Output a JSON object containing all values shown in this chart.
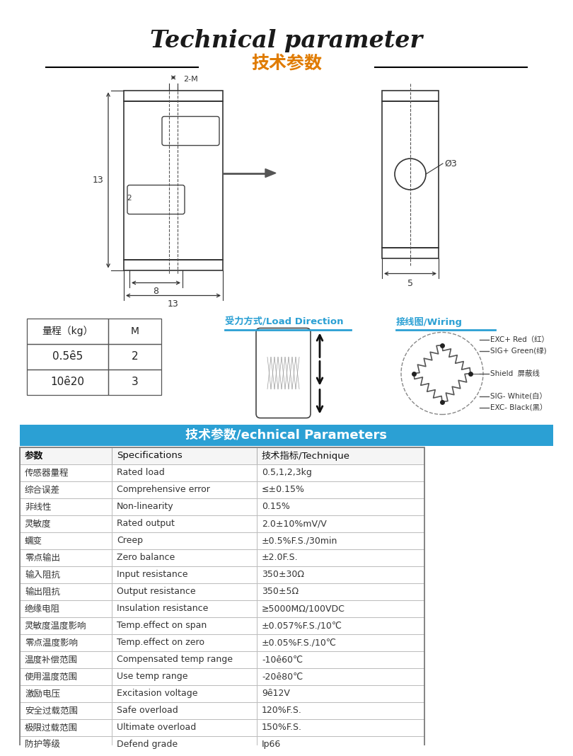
{
  "title_en": "Technical parameter",
  "title_cn": "技术参数",
  "title_en_color": "#1a1a1a",
  "title_cn_color": "#e07b00",
  "bg_color": "#ffffff",
  "section_header_bg": "#2ba0d4",
  "section_header_text": "技术参数/echnical Parameters",
  "section_header_color": "#ffffff",
  "range_table_headers": [
    "量程（kg）",
    "M"
  ],
  "range_table_rows": [
    [
      "0.5ȇ5",
      "2"
    ],
    [
      "10ȇ20",
      "3"
    ]
  ],
  "load_direction_label": "受力方式/Load Direction",
  "wiring_label": "接线图/Wiring",
  "wiring_lines": [
    "EXC+ Red（红）",
    "SIG+ Green(绿)",
    "Shield  屏蔽线",
    "SIG- White(白）",
    "EXC- Black(黑）"
  ],
  "tech_table_headers": [
    "参数",
    "Specifications",
    "技术指标/Technique"
  ],
  "tech_table_rows": [
    [
      "传感器量程",
      "Rated load",
      "0.5,1,2,3kg"
    ],
    [
      "综合误差",
      "Comprehensive error",
      "≤±0.15%"
    ],
    [
      "非线性",
      "Non-linearity",
      "0.15%"
    ],
    [
      "灵敏度",
      "Rated output",
      "2.0±10%mV/V"
    ],
    [
      "蠕变",
      "Creep",
      "±0.5%F.S./30min"
    ],
    [
      "零点输出",
      "Zero balance",
      "±2.0F.S."
    ],
    [
      "输入阻抗",
      "Input resistance",
      "350±30Ω"
    ],
    [
      "输出阻抗",
      "Output resistance",
      "350±5Ω"
    ],
    [
      "绝缘电阻",
      "Insulation resistance",
      "≥5000MΩ/100VDC"
    ],
    [
      "灵敏度温度影响",
      "Temp.effect on span",
      "±0.057%F.S./10℃"
    ],
    [
      "零点温度影响",
      "Temp.effect on zero",
      "±0.05%F.S./10℃"
    ],
    [
      "温度补偿范围",
      "Compensated temp range",
      "-10ȇ60℃"
    ],
    [
      "使用温度范围",
      "Use temp range",
      "-20ȇ80℃"
    ],
    [
      "激励电压",
      "Excitasion voltage",
      "9ȇ12V"
    ],
    [
      "安全过载范围",
      "Safe overload",
      "120%F.S."
    ],
    [
      "极限过载范围",
      "Ultimate overload",
      "150%F.S."
    ],
    [
      "防护等级",
      "Defend grade",
      "Ip66"
    ]
  ],
  "label_color_blue": "#2ba0d4",
  "line_color": "#555555"
}
